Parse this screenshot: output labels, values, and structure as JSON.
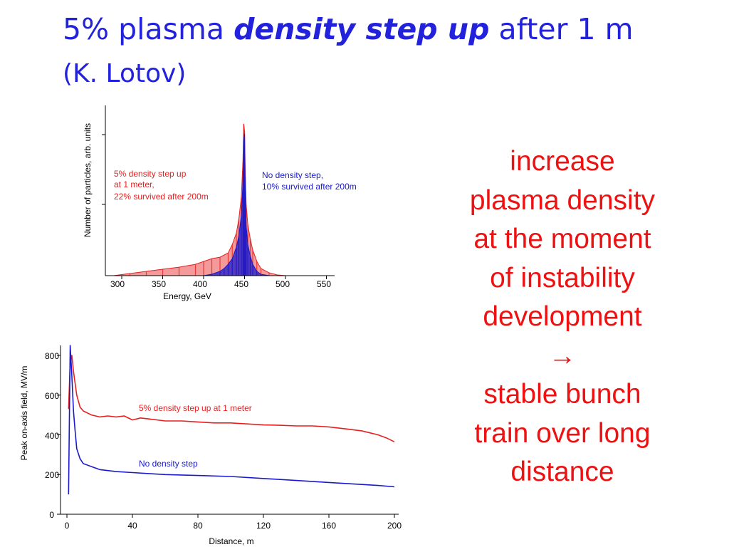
{
  "slide": {
    "title_part1": "5% plasma ",
    "title_emphasis": "density step up",
    "title_part2": " after 1 m",
    "title_line2": "(K. Lotov)",
    "callout": [
      "increase",
      "plasma density",
      "at the moment",
      "of instability",
      "development",
      "→",
      "stable bunch",
      "train over long",
      "distance"
    ]
  },
  "colors": {
    "title": "#2222dd",
    "callout": "#ee1111",
    "red_series": "#e62020",
    "blue_series": "#1a1acc"
  },
  "chart_data": [
    {
      "type": "area",
      "xlabel": "Energy, GeV",
      "ylabel": "Number of particles, arb. units",
      "xlim": [
        280,
        560
      ],
      "ylim": [
        0,
        1.2
      ],
      "xticks": [
        "300",
        "350",
        "400",
        "450",
        "500",
        "550"
      ],
      "grid": false,
      "annotations": [
        {
          "lines": [
            "5% density step up",
            "at 1 meter,",
            "22% survived after 200m"
          ],
          "color": "#e62020",
          "position": "left"
        },
        {
          "lines": [
            "No density step,",
            "10% survived after 200m"
          ],
          "color": "#1a1acc",
          "position": "right"
        }
      ],
      "series": [
        {
          "color": "#e62020",
          "x": [
            290,
            310,
            330,
            350,
            370,
            390,
            400,
            410,
            420,
            430,
            435,
            440,
            443,
            446,
            448,
            449,
            450,
            451,
            452,
            454,
            457,
            460,
            465,
            470,
            480,
            490,
            500
          ],
          "y": [
            0.0,
            0.015,
            0.03,
            0.045,
            0.06,
            0.08,
            0.1,
            0.12,
            0.13,
            0.16,
            0.22,
            0.3,
            0.4,
            0.55,
            0.8,
            1.07,
            1.02,
            0.7,
            0.5,
            0.36,
            0.26,
            0.18,
            0.1,
            0.05,
            0.02,
            0.005,
            0.0
          ]
        },
        {
          "color": "#1a1acc",
          "x": [
            400,
            410,
            420,
            425,
            430,
            435,
            440,
            443,
            446,
            448,
            449,
            450,
            451,
            452,
            454,
            457,
            460,
            465,
            470,
            480
          ],
          "y": [
            0.0,
            0.01,
            0.03,
            0.05,
            0.08,
            0.12,
            0.2,
            0.28,
            0.42,
            0.65,
            0.95,
            1.0,
            0.6,
            0.35,
            0.22,
            0.14,
            0.08,
            0.03,
            0.01,
            0.0
          ]
        }
      ]
    },
    {
      "type": "line",
      "xlabel": "Distance, m",
      "ylabel": "Peak on-axis field, MV/m",
      "xlim": [
        -2,
        203
      ],
      "ylim": [
        0,
        850
      ],
      "xticks": [
        "0",
        "40",
        "80",
        "120",
        "160",
        "200"
      ],
      "yticks": [
        "0",
        "200",
        "400",
        "600",
        "800"
      ],
      "grid": false,
      "series": [
        {
          "name": "5% density step up at 1 meter",
          "color": "#e62020",
          "x": [
            1,
            2,
            3,
            4,
            6,
            8,
            10,
            15,
            20,
            25,
            30,
            35,
            40,
            45,
            50,
            60,
            70,
            80,
            90,
            100,
            110,
            120,
            130,
            140,
            150,
            160,
            170,
            180,
            185,
            190,
            195,
            200
          ],
          "y": [
            530,
            760,
            800,
            720,
            600,
            540,
            520,
            500,
            490,
            495,
            490,
            495,
            475,
            485,
            480,
            470,
            470,
            465,
            460,
            460,
            455,
            450,
            448,
            445,
            445,
            440,
            430,
            420,
            410,
            400,
            385,
            365
          ]
        },
        {
          "name": "No density step",
          "color": "#1a1acc",
          "x": [
            1,
            2,
            3,
            4,
            5,
            6,
            8,
            10,
            15,
            20,
            30,
            40,
            50,
            60,
            80,
            100,
            120,
            140,
            160,
            180,
            190,
            200
          ],
          "y": [
            100,
            850,
            700,
            520,
            420,
            330,
            280,
            255,
            240,
            225,
            215,
            210,
            205,
            200,
            195,
            190,
            180,
            170,
            160,
            150,
            145,
            138
          ]
        }
      ]
    }
  ]
}
